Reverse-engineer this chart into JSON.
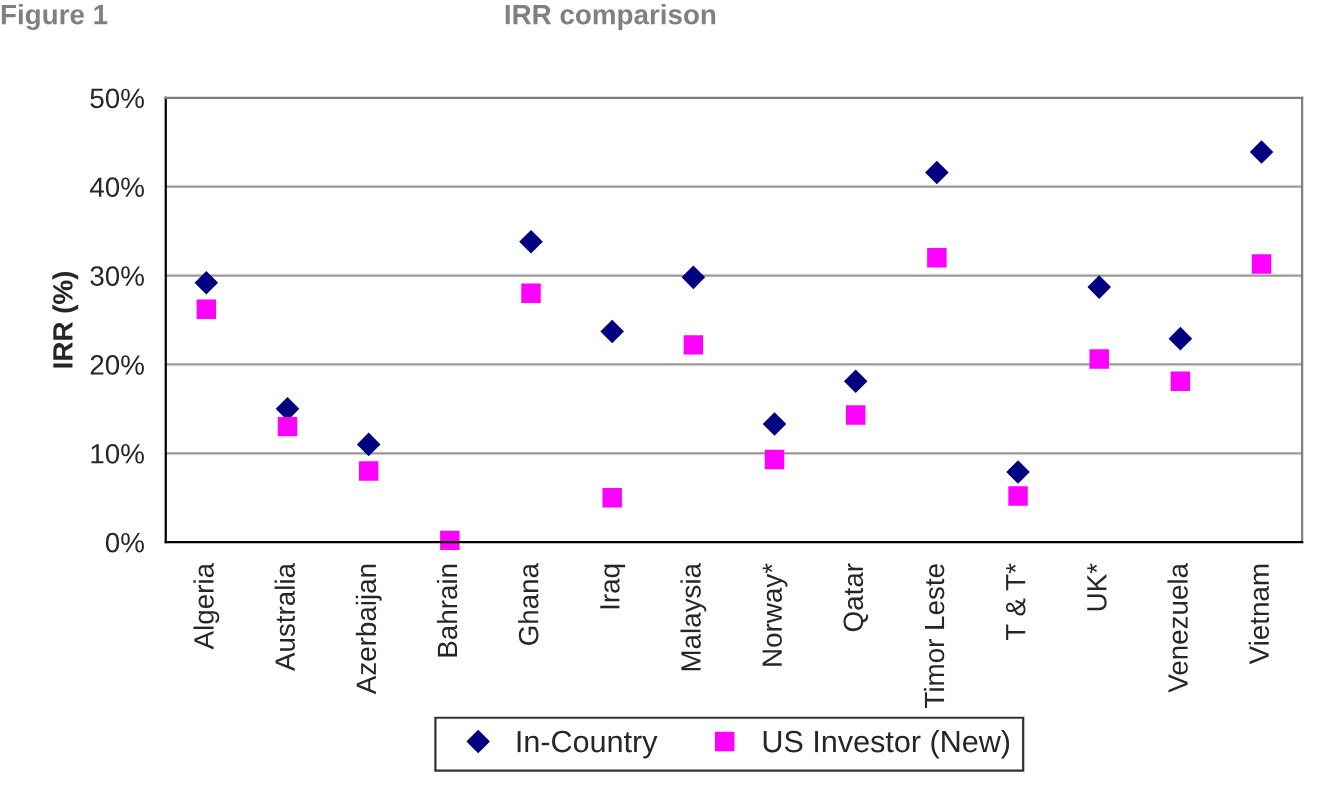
{
  "chart_data": {
    "type": "scatter",
    "title": "IRR comparison",
    "annotations": [
      "Figure 1"
    ],
    "ylabel": "IRR (%)",
    "categories": [
      "Algeria",
      "Australia",
      "Azerbaijan",
      "Bahrain",
      "Ghana",
      "Iraq",
      "Malaysia",
      "Norway*",
      "Qatar",
      "Timor Leste",
      "T & T*",
      "UK*",
      "Venezuela",
      "Vietnam"
    ],
    "series": [
      {
        "name": "In-Country",
        "color": "#000080",
        "marker": "diamond",
        "values": [
          29.2,
          15,
          11,
          null,
          33.8,
          23.7,
          29.8,
          13.3,
          18.1,
          41.6,
          7.9,
          28.7,
          22.9,
          43.9
        ]
      },
      {
        "name": "US Investor (New)",
        "color": "#ff00ff",
        "marker": "square",
        "values": [
          26.2,
          13,
          8,
          0.2,
          28,
          5,
          22.2,
          9.3,
          14.3,
          32,
          5.2,
          20.6,
          18.1,
          31.3
        ]
      }
    ],
    "ylim": [
      0,
      50
    ],
    "yticks": [
      {
        "value": 0,
        "label": "0%"
      },
      {
        "value": 10,
        "label": "10%"
      },
      {
        "value": 20,
        "label": "20%"
      },
      {
        "value": 30,
        "label": "30%"
      },
      {
        "value": 40,
        "label": "40%"
      },
      {
        "value": 50,
        "label": "50%"
      }
    ],
    "grid": "y",
    "legend": "bottom"
  }
}
